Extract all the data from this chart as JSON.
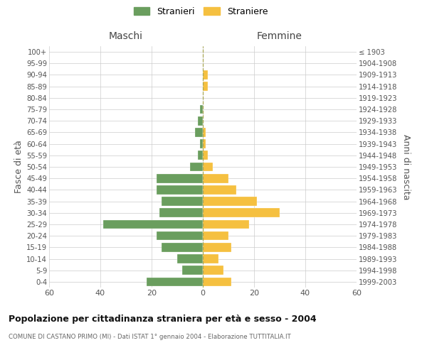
{
  "age_groups": [
    "0-4",
    "5-9",
    "10-14",
    "15-19",
    "20-24",
    "25-29",
    "30-34",
    "35-39",
    "40-44",
    "45-49",
    "50-54",
    "55-59",
    "60-64",
    "65-69",
    "70-74",
    "75-79",
    "80-84",
    "85-89",
    "90-94",
    "95-99",
    "100+"
  ],
  "birth_years": [
    "1999-2003",
    "1994-1998",
    "1989-1993",
    "1984-1988",
    "1979-1983",
    "1974-1978",
    "1969-1973",
    "1964-1968",
    "1959-1963",
    "1954-1958",
    "1949-1953",
    "1944-1948",
    "1939-1943",
    "1934-1938",
    "1929-1933",
    "1924-1928",
    "1919-1923",
    "1914-1918",
    "1909-1913",
    "1904-1908",
    "≤ 1903"
  ],
  "maschi": [
    22,
    8,
    10,
    16,
    18,
    39,
    17,
    16,
    18,
    18,
    5,
    2,
    1,
    3,
    2,
    1,
    0,
    0,
    0,
    0,
    0
  ],
  "femmine": [
    11,
    8,
    6,
    11,
    10,
    18,
    30,
    21,
    13,
    10,
    4,
    2,
    1,
    1,
    0,
    0,
    0,
    2,
    2,
    0,
    0
  ],
  "color_maschi": "#6a9e5e",
  "color_femmine": "#f5c040",
  "title": "Popolazione per cittadinanza straniera per età e sesso - 2004",
  "subtitle": "COMUNE DI CASTANO PRIMO (MI) - Dati ISTAT 1° gennaio 2004 - Elaborazione TUTTITALIA.IT",
  "ylabel_left": "Fasce di età",
  "ylabel_right": "Anni di nascita",
  "xlabel_left": "Maschi",
  "xlabel_right": "Femmine",
  "legend_maschi": "Stranieri",
  "legend_femmine": "Straniere",
  "xlim": 60,
  "background_color": "#ffffff",
  "grid_color": "#cccccc"
}
